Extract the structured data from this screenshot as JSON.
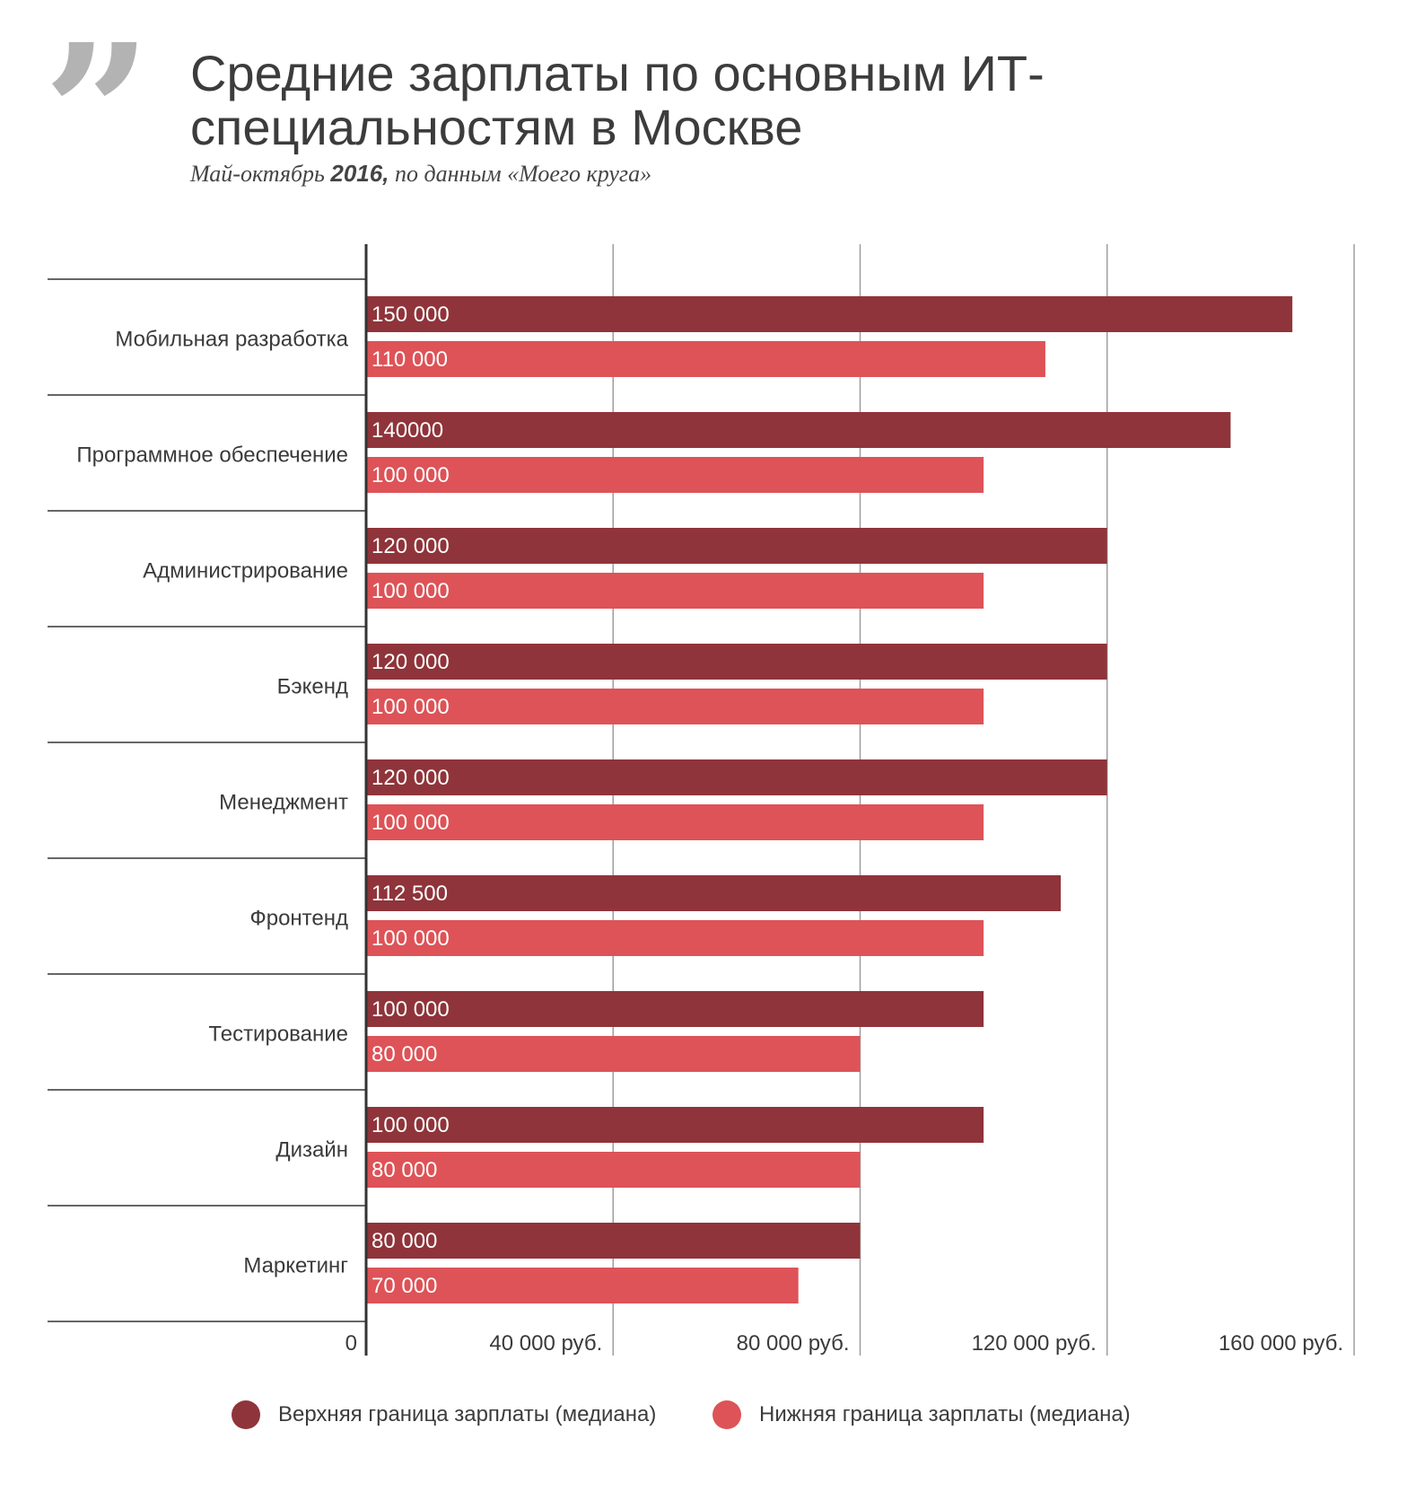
{
  "header": {
    "quote_mark": "”",
    "title": "Средние зарплаты по основным ИТ-специальностям в Москве",
    "subtitle_prefix": "Май-октябрь ",
    "subtitle_year": "2016,",
    "subtitle_suffix": " по данным «Моего круга»"
  },
  "colors": {
    "upper": "#8f343a",
    "lower": "#dd5357",
    "grid": "#9e9e9e",
    "axis": "#333333",
    "label": "#3a3a3a"
  },
  "chart_data": {
    "type": "bar",
    "orientation": "horizontal",
    "categories": [
      "Мобильная разработка",
      "Программное обеспечение",
      "Администрирование",
      "Бэкенд",
      "Менеджмент",
      "Фронтенд",
      "Тестирование",
      "Дизайн",
      "Маркетинг"
    ],
    "series": [
      {
        "name": "Верхняя граница зарплаты (медиана)",
        "color": "#8f343a",
        "values": [
          150000,
          140000,
          120000,
          120000,
          120000,
          112500,
          100000,
          100000,
          80000
        ],
        "labels": [
          "150 000",
          "140000",
          "120 000",
          "120 000",
          "120 000",
          "112 500",
          "100 000",
          "100 000",
          "80 000"
        ]
      },
      {
        "name": "Нижняя граница зарплаты (медиана)",
        "color": "#dd5357",
        "values": [
          110000,
          100000,
          100000,
          100000,
          100000,
          100000,
          80000,
          80000,
          70000
        ],
        "labels": [
          "110 000",
          "100 000",
          "100 000",
          "100 000",
          "100 000",
          "100 000",
          "80 000",
          "80 000",
          "70 000"
        ]
      }
    ],
    "x_ticks": [
      0,
      40000,
      80000,
      120000,
      160000
    ],
    "x_tick_labels": [
      "0",
      "40 000 руб.",
      "80 000 руб.",
      "120 000 руб.",
      "160 000 руб."
    ],
    "xlim": [
      0,
      160000
    ],
    "grid": true,
    "legend_position": "bottom"
  }
}
